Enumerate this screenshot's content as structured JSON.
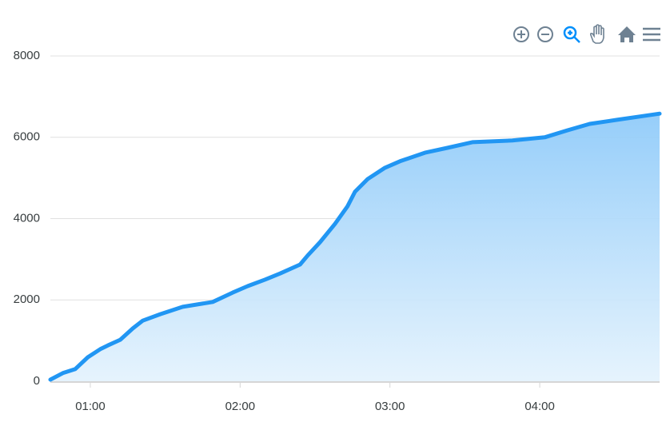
{
  "chart_data": {
    "type": "area",
    "x": [
      44,
      49,
      54,
      59,
      64,
      67,
      72,
      77,
      81,
      88,
      97,
      109,
      117,
      123,
      130,
      136,
      144,
      147,
      152,
      158,
      163,
      166,
      171,
      178,
      184,
      194,
      203,
      213,
      229,
      242,
      251,
      260,
      271,
      280,
      288
    ],
    "series": [
      {
        "color": "#2196f3",
        "values": [
          40,
          200,
          300,
          590,
          790,
          880,
          1020,
          1300,
          1490,
          1650,
          1830,
          1950,
          2180,
          2340,
          2500,
          2650,
          2870,
          3090,
          3420,
          3870,
          4300,
          4660,
          4970,
          5250,
          5410,
          5620,
          5740,
          5880,
          5920,
          6000,
          6170,
          6330,
          6430,
          6510,
          6580
        ]
      }
    ],
    "xlim": [
      44,
      288
    ],
    "xticks": [
      {
        "value": 60,
        "label": "01:00"
      },
      {
        "value": 120,
        "label": "02:00"
      },
      {
        "value": 180,
        "label": "03:00"
      },
      {
        "value": 240,
        "label": "04:00"
      }
    ],
    "ylim": [
      0,
      8000
    ],
    "yticks": [
      0,
      2000,
      4000,
      6000,
      8000
    ],
    "grid": true
  }
}
